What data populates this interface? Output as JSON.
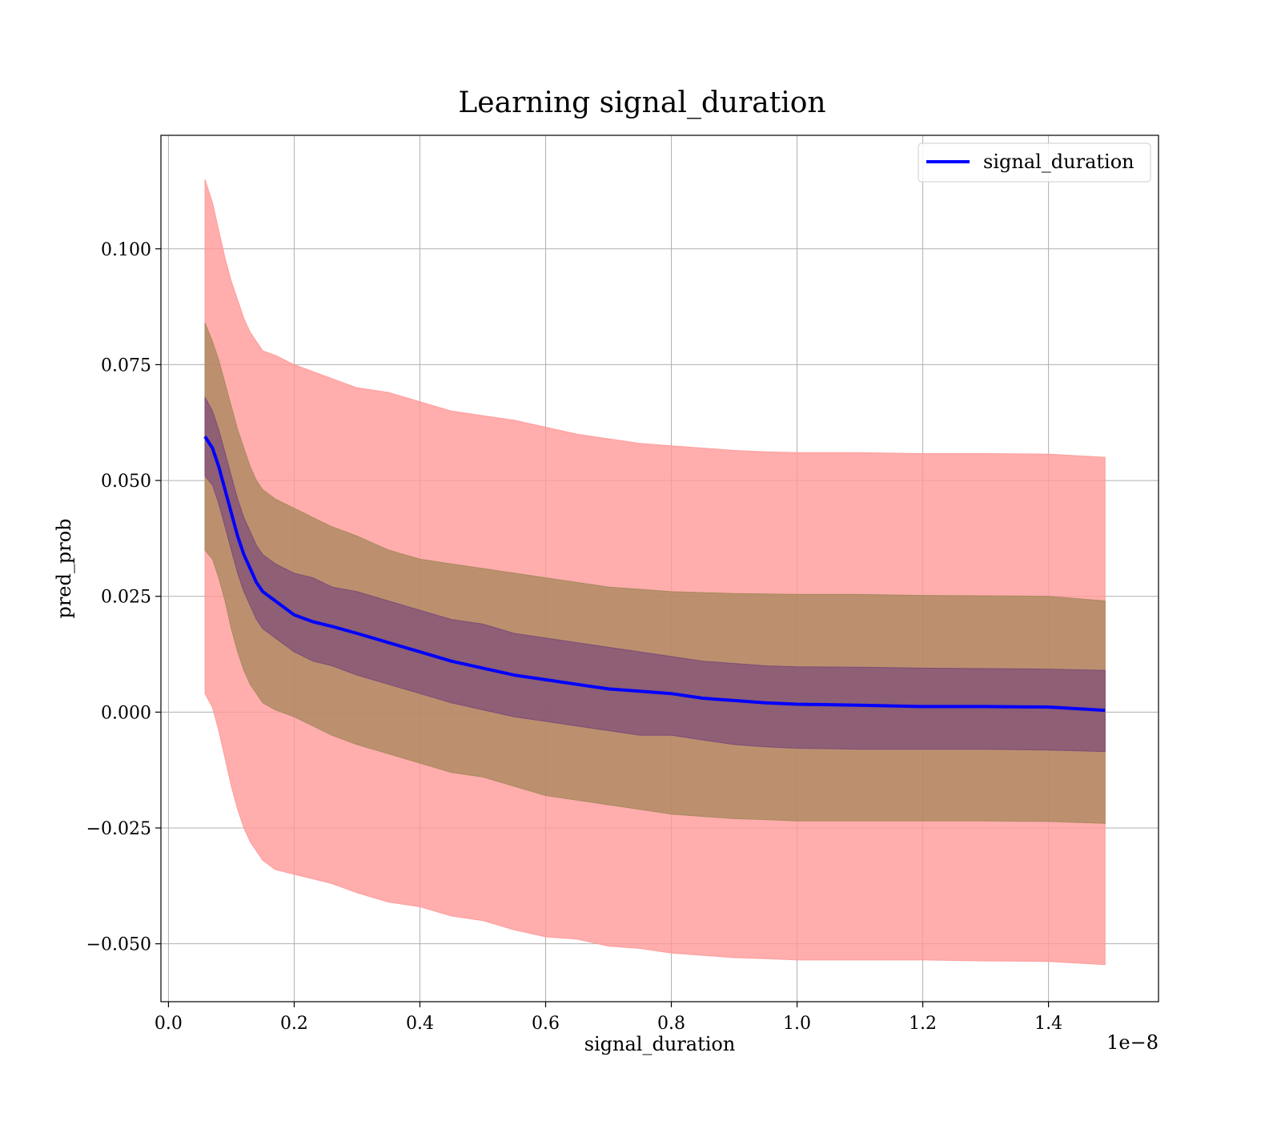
{
  "chart_data": {
    "type": "line",
    "title": "Learning signal_duration",
    "xlabel": "signal_duration",
    "ylabel": "pred_prob",
    "x_offset_label": "1e−8",
    "xlim": [
      -0.012,
      1.575
    ],
    "ylim": [
      -0.0625,
      0.1245
    ],
    "xticks": [
      0.0,
      0.2,
      0.4,
      0.6,
      0.8,
      1.0,
      1.2,
      1.4
    ],
    "xtick_labels": [
      "0.0",
      "0.2",
      "0.4",
      "0.6",
      "0.8",
      "1.0",
      "1.2",
      "1.4"
    ],
    "yticks": [
      -0.05,
      -0.025,
      0.0,
      0.025,
      0.05,
      0.075,
      0.1
    ],
    "ytick_labels": [
      "−0.050",
      "−0.025",
      "0.000",
      "0.025",
      "0.050",
      "0.075",
      "0.100"
    ],
    "grid": true,
    "legend": {
      "position": "top-right",
      "entries": [
        "signal_duration"
      ]
    },
    "colors": {
      "mean_line": "#0000ff",
      "band_outer": "#ff9999",
      "band_middle": "#a5875a",
      "band_inner": "#7a4a78"
    },
    "x": [
      0.058,
      0.07,
      0.08,
      0.09,
      0.1,
      0.11,
      0.12,
      0.13,
      0.14,
      0.15,
      0.17,
      0.2,
      0.23,
      0.26,
      0.3,
      0.35,
      0.4,
      0.45,
      0.5,
      0.55,
      0.6,
      0.65,
      0.7,
      0.75,
      0.8,
      0.85,
      0.9,
      0.95,
      1.0,
      1.1,
      1.2,
      1.3,
      1.4,
      1.49
    ],
    "series": [
      {
        "name": "signal_duration",
        "values": [
          0.0595,
          0.057,
          0.053,
          0.048,
          0.043,
          0.038,
          0.034,
          0.031,
          0.028,
          0.026,
          0.024,
          0.021,
          0.0195,
          0.0185,
          0.017,
          0.015,
          0.013,
          0.011,
          0.0095,
          0.008,
          0.007,
          0.006,
          0.005,
          0.0045,
          0.004,
          0.003,
          0.0025,
          0.002,
          0.0017,
          0.0015,
          0.0012,
          0.0012,
          0.0011,
          0.0004
        ]
      }
    ],
    "bands": [
      {
        "level": "outer",
        "upper": [
          0.115,
          0.11,
          0.104,
          0.098,
          0.093,
          0.089,
          0.085,
          0.082,
          0.08,
          0.078,
          0.077,
          0.075,
          0.0735,
          0.072,
          0.07,
          0.069,
          0.067,
          0.065,
          0.064,
          0.063,
          0.0615,
          0.06,
          0.059,
          0.058,
          0.0575,
          0.057,
          0.0565,
          0.0562,
          0.056,
          0.056,
          0.0558,
          0.0558,
          0.0557,
          0.055
        ],
        "lower": [
          0.004,
          0.001,
          -0.004,
          -0.01,
          -0.016,
          -0.021,
          -0.025,
          -0.028,
          -0.03,
          -0.032,
          -0.034,
          -0.035,
          -0.036,
          -0.037,
          -0.039,
          -0.041,
          -0.042,
          -0.044,
          -0.045,
          -0.047,
          -0.0485,
          -0.049,
          -0.0505,
          -0.051,
          -0.052,
          -0.0525,
          -0.053,
          -0.0532,
          -0.0535,
          -0.0535,
          -0.0535,
          -0.0537,
          -0.0538,
          -0.0545
        ]
      },
      {
        "level": "middle",
        "upper": [
          0.084,
          0.08,
          0.076,
          0.071,
          0.066,
          0.061,
          0.057,
          0.053,
          0.05,
          0.048,
          0.046,
          0.044,
          0.042,
          0.04,
          0.038,
          0.035,
          0.033,
          0.032,
          0.031,
          0.03,
          0.029,
          0.028,
          0.027,
          0.0265,
          0.026,
          0.0258,
          0.0256,
          0.0255,
          0.0254,
          0.0254,
          0.0252,
          0.0251,
          0.025,
          0.024
        ],
        "lower": [
          0.035,
          0.033,
          0.029,
          0.024,
          0.018,
          0.013,
          0.009,
          0.006,
          0.004,
          0.002,
          0.0005,
          -0.001,
          -0.003,
          -0.005,
          -0.007,
          -0.009,
          -0.011,
          -0.013,
          -0.014,
          -0.016,
          -0.018,
          -0.019,
          -0.02,
          -0.021,
          -0.022,
          -0.0225,
          -0.023,
          -0.0232,
          -0.0235,
          -0.0235,
          -0.0235,
          -0.0235,
          -0.0236,
          -0.024
        ]
      },
      {
        "level": "inner",
        "upper": [
          0.068,
          0.065,
          0.061,
          0.056,
          0.051,
          0.046,
          0.042,
          0.039,
          0.036,
          0.034,
          0.032,
          0.03,
          0.029,
          0.027,
          0.026,
          0.024,
          0.022,
          0.02,
          0.019,
          0.017,
          0.016,
          0.015,
          0.014,
          0.013,
          0.012,
          0.011,
          0.0105,
          0.01,
          0.0098,
          0.0097,
          0.0095,
          0.0094,
          0.0093,
          0.009
        ],
        "lower": [
          0.051,
          0.049,
          0.045,
          0.04,
          0.035,
          0.03,
          0.026,
          0.023,
          0.02,
          0.018,
          0.016,
          0.013,
          0.011,
          0.01,
          0.008,
          0.006,
          0.004,
          0.002,
          0.0005,
          -0.001,
          -0.002,
          -0.003,
          -0.004,
          -0.005,
          -0.005,
          -0.006,
          -0.007,
          -0.0075,
          -0.0078,
          -0.008,
          -0.008,
          -0.008,
          -0.0082,
          -0.0085
        ]
      }
    ]
  }
}
